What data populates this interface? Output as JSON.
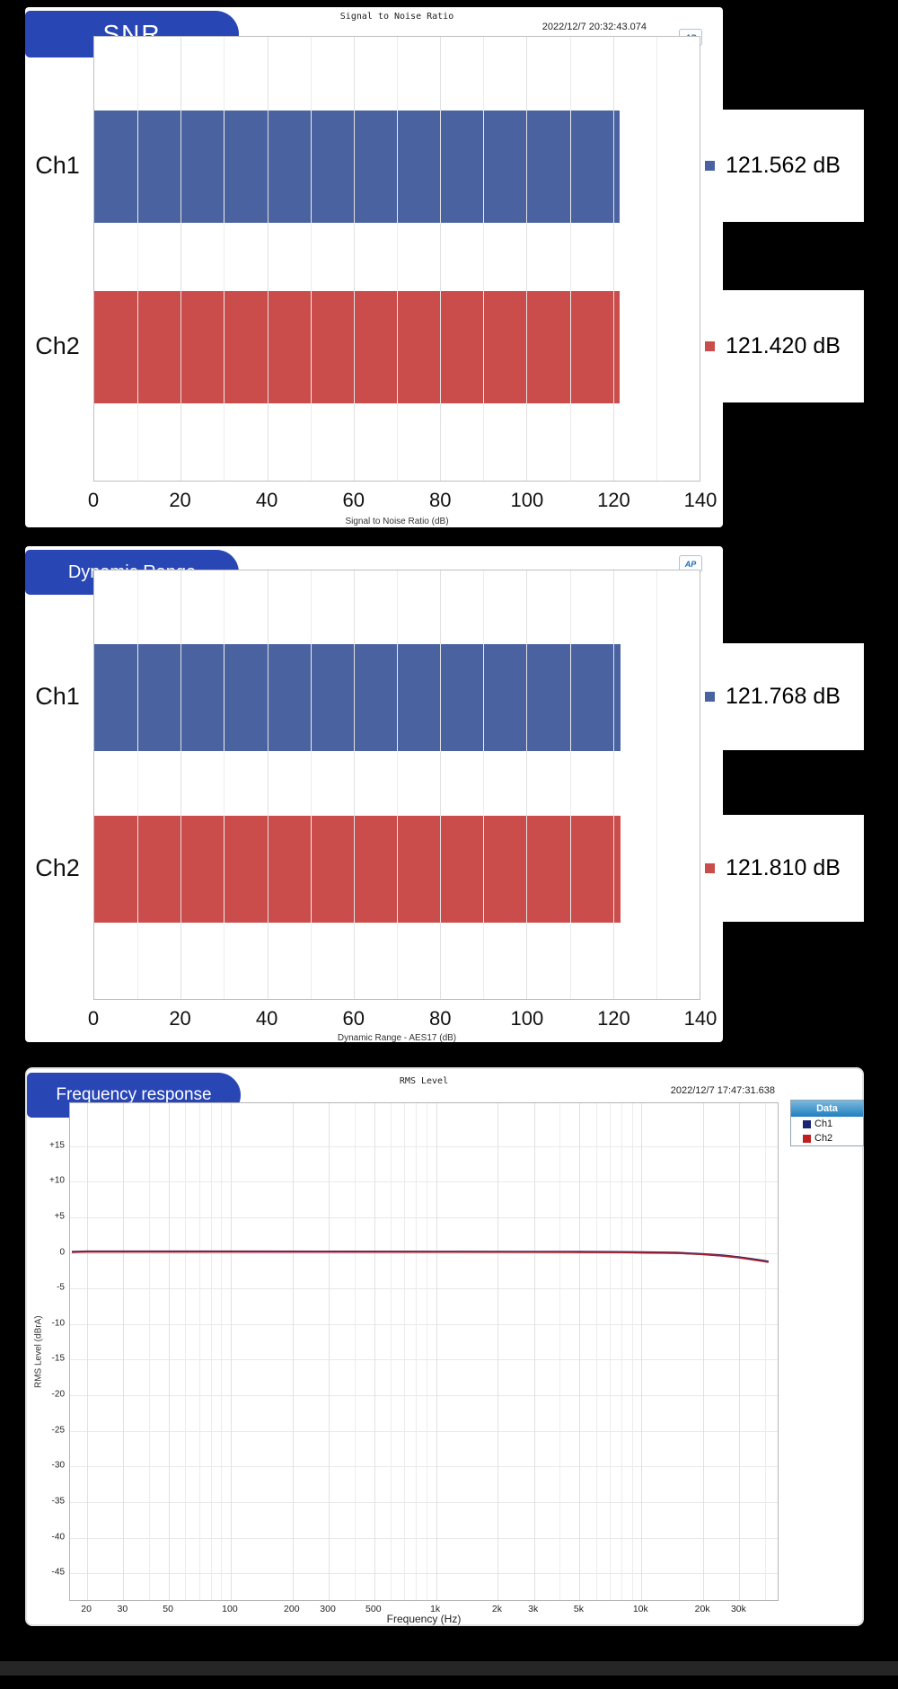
{
  "page": {
    "background": "#000000",
    "footer_bar_color": "#262626"
  },
  "panels": {
    "snr": {
      "banner": "SNR",
      "title": "Signal to Noise Ratio",
      "timestamp": "2022/12/7 20:32:43.074",
      "ap_logo": "AP"
    },
    "dynamic_range": {
      "banner": "Dynamic Range",
      "ap_logo": "AP"
    },
    "frequency_response": {
      "banner": "Frequency response",
      "title": "RMS Level",
      "timestamp": "2022/12/7 17:47:31.638",
      "ap_logo": "AP",
      "legend_header": "Data"
    }
  },
  "chart_data": [
    {
      "type": "bar",
      "orientation": "horizontal",
      "title": "Signal to Noise Ratio",
      "categories": [
        "Ch1",
        "Ch2"
      ],
      "values": [
        121.562,
        121.42
      ],
      "value_labels": [
        "121.562 dB",
        "121.420 dB"
      ],
      "bar_colors": [
        "#4a63a0",
        "#cb4d4b"
      ],
      "xlabel": "Signal to Noise Ratio (dB)",
      "xlim": [
        0,
        140
      ],
      "xticks": [
        0,
        20,
        40,
        60,
        80,
        100,
        120,
        140
      ],
      "grid": true,
      "legend_position": "right-value-readouts"
    },
    {
      "type": "bar",
      "orientation": "horizontal",
      "title": "Dynamic Range",
      "categories": [
        "Ch1",
        "Ch2"
      ],
      "values": [
        121.768,
        121.81
      ],
      "value_labels": [
        "121.768 dB",
        "121.810 dB"
      ],
      "bar_colors": [
        "#4a63a0",
        "#cb4d4b"
      ],
      "xlabel": "Dynamic Range - AES17 (dB)",
      "xlim": [
        0,
        140
      ],
      "xticks": [
        0,
        20,
        40,
        60,
        80,
        100,
        120,
        140
      ],
      "grid": true,
      "legend_position": "right-value-readouts"
    },
    {
      "type": "line",
      "title": "RMS Level",
      "xlabel": "Frequency (Hz)",
      "ylabel": "RMS Level (dBrA)",
      "x_scale": "log",
      "xlim": [
        16.5,
        47000
      ],
      "ylim": [
        -49,
        21
      ],
      "grid": true,
      "legend_position": "outside-top-right",
      "yticks": [
        {
          "v": 15,
          "label": "+15"
        },
        {
          "v": 10,
          "label": "+10"
        },
        {
          "v": 5,
          "label": "+5"
        },
        {
          "v": 0,
          "label": "0"
        },
        {
          "v": -5,
          "label": "-5"
        },
        {
          "v": -10,
          "label": "-10"
        },
        {
          "v": -15,
          "label": "-15"
        },
        {
          "v": -20,
          "label": "-20"
        },
        {
          "v": -25,
          "label": "-25"
        },
        {
          "v": -30,
          "label": "-30"
        },
        {
          "v": -35,
          "label": "-35"
        },
        {
          "v": -40,
          "label": "-40"
        },
        {
          "v": -45,
          "label": "-45"
        }
      ],
      "xticks": [
        {
          "v": 20,
          "label": "20"
        },
        {
          "v": 30,
          "label": "30"
        },
        {
          "v": 50,
          "label": "50"
        },
        {
          "v": 100,
          "label": "100"
        },
        {
          "v": 200,
          "label": "200"
        },
        {
          "v": 300,
          "label": "300"
        },
        {
          "v": 500,
          "label": "500"
        },
        {
          "v": 1000,
          "label": "1k"
        },
        {
          "v": 2000,
          "label": "2k"
        },
        {
          "v": 3000,
          "label": "3k"
        },
        {
          "v": 5000,
          "label": "5k"
        },
        {
          "v": 10000,
          "label": "10k"
        },
        {
          "v": 20000,
          "label": "20k"
        },
        {
          "v": 30000,
          "label": "30k"
        }
      ],
      "series": [
        {
          "name": "Ch1",
          "color": "#1a2472",
          "points": [
            [
              17,
              0
            ],
            [
              20,
              0.05
            ],
            [
              50,
              0.05
            ],
            [
              100,
              0.05
            ],
            [
              300,
              0.04
            ],
            [
              1000,
              0.02
            ],
            [
              3000,
              0.01
            ],
            [
              5000,
              0
            ],
            [
              8000,
              -0.03
            ],
            [
              10000,
              -0.06
            ],
            [
              15000,
              -0.13
            ],
            [
              20000,
              -0.3
            ],
            [
              25000,
              -0.5
            ],
            [
              30000,
              -0.75
            ],
            [
              35000,
              -1.02
            ],
            [
              40000,
              -1.28
            ],
            [
              42000,
              -1.38
            ]
          ]
        },
        {
          "name": "Ch2",
          "color": "#c11f1f",
          "points": [
            [
              17,
              0
            ],
            [
              20,
              0.03
            ],
            [
              50,
              0.03
            ],
            [
              100,
              0.03
            ],
            [
              300,
              0.02
            ],
            [
              1000,
              0
            ],
            [
              3000,
              -0.01
            ],
            [
              5000,
              -0.02
            ],
            [
              8000,
              -0.05
            ],
            [
              10000,
              -0.08
            ],
            [
              15000,
              -0.16
            ],
            [
              20000,
              -0.33
            ],
            [
              25000,
              -0.54
            ],
            [
              30000,
              -0.8
            ],
            [
              35000,
              -1.08
            ],
            [
              40000,
              -1.34
            ],
            [
              42000,
              -1.44
            ]
          ]
        }
      ]
    }
  ]
}
